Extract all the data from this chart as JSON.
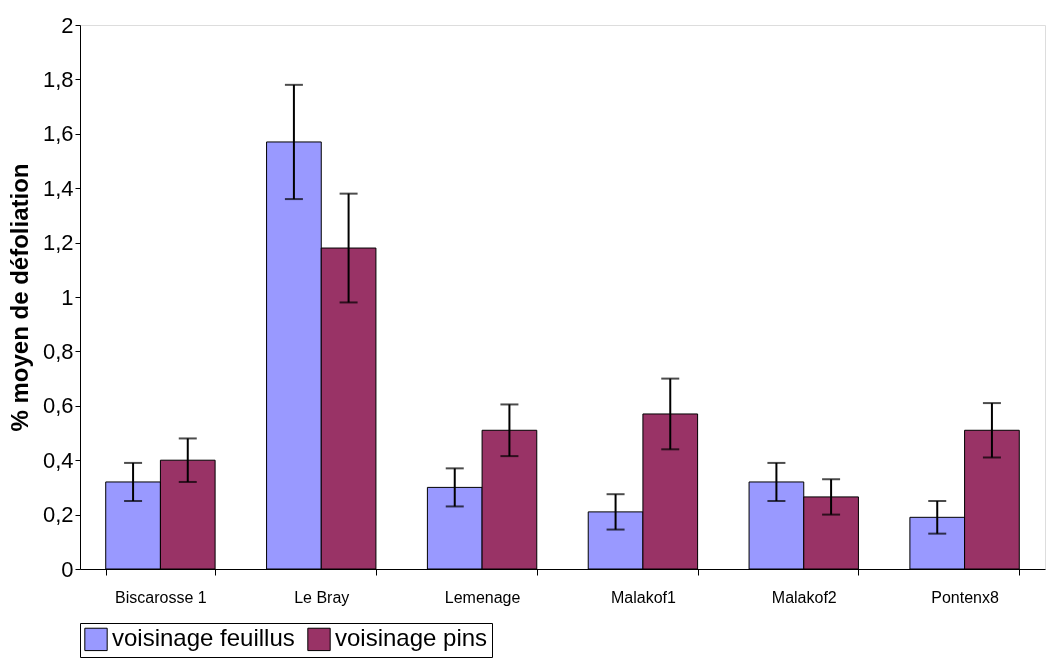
{
  "chart_data": {
    "type": "bar",
    "ylabel": "% moyen de défoliation",
    "categories": [
      "Biscarosse 1",
      "Le Bray",
      "Lemenage",
      "Malakof1",
      "Malakof2",
      "Pontenx8"
    ],
    "series": [
      {
        "name": "voisinage feuillus",
        "color": "#9999ff",
        "values": [
          0.32,
          1.57,
          0.3,
          0.21,
          0.32,
          0.19
        ],
        "errors": [
          0.07,
          0.21,
          0.07,
          0.065,
          0.07,
          0.06
        ]
      },
      {
        "name": "voisinage pins",
        "color": "#993366",
        "values": [
          0.4,
          1.18,
          0.51,
          0.57,
          0.265,
          0.51
        ],
        "errors": [
          0.08,
          0.2,
          0.095,
          0.13,
          0.065,
          0.1
        ]
      }
    ],
    "ylim": [
      0,
      2
    ],
    "yticks": [
      0,
      {
        "value": 0.2,
        "label": "0,2"
      },
      {
        "value": 0.4,
        "label": "0,4"
      },
      {
        "value": 0.6,
        "label": "0,6"
      },
      {
        "value": 0.8,
        "label": "0,8"
      },
      1,
      {
        "value": 1.2,
        "label": "1,2"
      },
      {
        "value": 1.4,
        "label": "1,4"
      },
      {
        "value": 1.6,
        "label": "1,6"
      },
      {
        "value": 1.8,
        "label": "1,8"
      },
      2
    ],
    "grid": false,
    "legend": "bottom"
  }
}
